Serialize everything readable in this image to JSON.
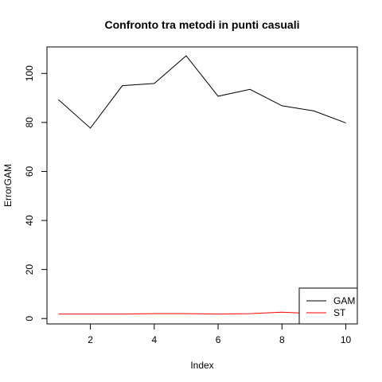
{
  "chart_data": {
    "type": "line",
    "title": "Confronto tra metodi in punti casuali",
    "xlabel": "Index",
    "ylabel": "ErrorGAM",
    "x": [
      1,
      2,
      3,
      4,
      5,
      6,
      7,
      8,
      9,
      10
    ],
    "xlim": [
      0.64,
      10.36
    ],
    "ylim": [
      -2.2,
      110.8
    ],
    "xticks": [
      2,
      4,
      6,
      8,
      10
    ],
    "yticks": [
      0,
      20,
      40,
      60,
      80,
      100
    ],
    "grid": false,
    "legend_position": "bottom-right",
    "series": [
      {
        "name": "GAM",
        "color": "#000000",
        "values": [
          89.3,
          77.7,
          95.0,
          95.9,
          107.2,
          90.7,
          93.5,
          86.8,
          84.7,
          79.8
        ]
      },
      {
        "name": "ST",
        "color": "#ff0000",
        "values": [
          1.8,
          1.8,
          1.8,
          2.0,
          2.0,
          1.8,
          2.0,
          2.6,
          2.0,
          1.8
        ]
      }
    ]
  }
}
